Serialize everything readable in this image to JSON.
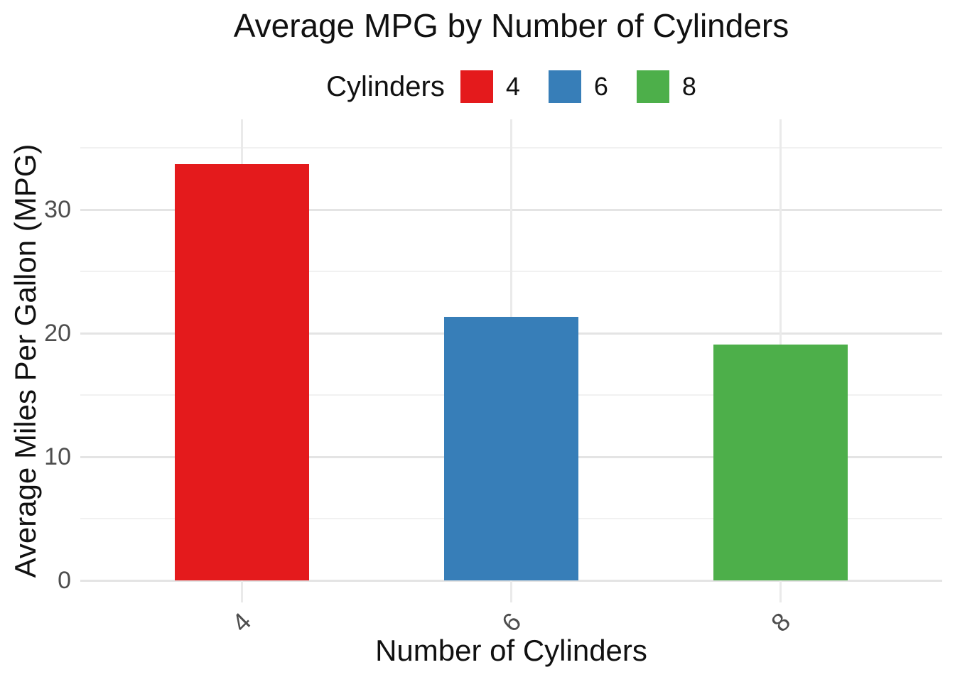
{
  "chart_data": {
    "type": "bar",
    "title": "Average MPG by Number of Cylinders",
    "xlabel": "Number of Cylinders",
    "ylabel": "Average Miles Per Gallon (MPG)",
    "legend": {
      "title": "Cylinders",
      "position": "top",
      "entries": [
        "4",
        "6",
        "8"
      ]
    },
    "categories": [
      "4",
      "6",
      "8"
    ],
    "values": [
      33.7,
      21.3,
      19.1
    ],
    "bar_colors": [
      "#E41A1C",
      "#377EB8",
      "#4DAF4A"
    ],
    "ylim": [
      0,
      35.5
    ],
    "yticks_major": [
      0,
      10,
      20,
      30
    ],
    "yticks_minor": [
      5,
      15,
      25,
      35
    ],
    "grid": true,
    "background_color": "#FFFFFF",
    "title_color": "#111111",
    "tick_label_color": "#4D4D4D",
    "grid_major_color": "#E4E4E4",
    "grid_minor_color": "#F1F1F1"
  }
}
